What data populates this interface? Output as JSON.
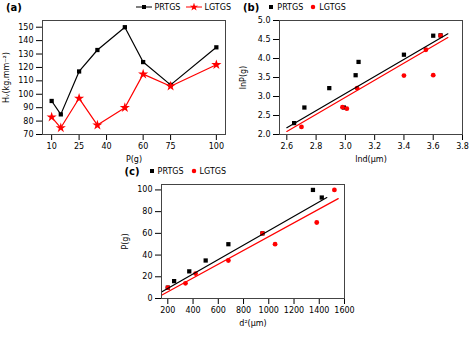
{
  "chart_data": [
    {
      "type": "line",
      "title": "(a)",
      "xlabel": "P(g)",
      "ylabel": "Hᵥ(kg.mm⁻²)",
      "xlim": [
        5,
        105
      ],
      "ylim": [
        70,
        155
      ],
      "xticks": [
        10,
        25,
        40,
        60,
        75,
        100
      ],
      "yticks": [
        70,
        80,
        90,
        100,
        110,
        120,
        130,
        140,
        150
      ],
      "grid": false,
      "legend": "upper right",
      "series": [
        {
          "name": "PRTGS",
          "color": "black",
          "marker": "square",
          "x": [
            10,
            15,
            25,
            35,
            50,
            60,
            75,
            100
          ],
          "values": [
            95,
            85,
            117,
            133,
            150,
            124,
            107,
            135
          ]
        },
        {
          "name": "LGTGS",
          "color": "red",
          "marker": "star",
          "x": [
            10,
            15,
            25,
            35,
            50,
            60,
            75,
            100
          ],
          "values": [
            83,
            75,
            97,
            77,
            90,
            115,
            106,
            122
          ]
        }
      ]
    },
    {
      "type": "scatter",
      "title": "(b)",
      "xlabel": "lnd(μm)",
      "ylabel": "lnP(g)",
      "xlim": [
        2.55,
        3.8
      ],
      "ylim": [
        2.0,
        5.0
      ],
      "xticks": [
        2.6,
        2.8,
        {
          "value": 3,
          "label": "3.0"
        },
        3.2,
        3.4,
        3.6,
        3.8
      ],
      "yticks": [
        {
          "value": 2,
          "label": "2.0"
        },
        2.5,
        {
          "value": 3,
          "label": "3.0"
        },
        3.5,
        {
          "value": 4,
          "label": "4.0"
        },
        4.5,
        {
          "value": 5,
          "label": "5.0"
        }
      ],
      "grid": false,
      "legend": "upper left",
      "series": [
        {
          "name": "PRTGS",
          "color": "black",
          "marker": "square",
          "type": "scatter",
          "x": [
            2.65,
            2.72,
            2.89,
            2.99,
            3.07,
            3.09,
            3.4,
            3.6,
            3.65
          ],
          "values": [
            2.3,
            2.71,
            3.22,
            2.71,
            3.56,
            3.91,
            4.1,
            4.6,
            4.61
          ]
        },
        {
          "name": "LGTGS",
          "color": "red",
          "marker": "circle",
          "type": "scatter",
          "x": [
            2.7,
            2.98,
            3.01,
            3.08,
            3.4,
            3.55,
            3.6,
            3.65
          ],
          "values": [
            2.2,
            2.72,
            2.68,
            3.22,
            3.55,
            4.23,
            3.56,
            4.6
          ]
        },
        {
          "color": "black",
          "type": "line",
          "x": [
            2.6,
            3.7
          ],
          "values": [
            2.18,
            4.65
          ]
        },
        {
          "color": "red",
          "type": "line",
          "x": [
            2.6,
            3.7
          ],
          "values": [
            2.08,
            4.55
          ]
        }
      ]
    },
    {
      "type": "scatter",
      "title": "(c)",
      "xlabel": "d²(μm)",
      "ylabel": "P(g)",
      "xlim": [
        150,
        1600
      ],
      "ylim": [
        0,
        105
      ],
      "xticks": [
        200,
        400,
        600,
        800,
        1000,
        1200,
        1400,
        1600
      ],
      "yticks": [
        0,
        20,
        40,
        60,
        80,
        100
      ],
      "grid": false,
      "legend": "upper left",
      "series": [
        {
          "name": "PRTGS",
          "color": "black",
          "marker": "square",
          "type": "scatter",
          "x": [
            200,
            250,
            370,
            500,
            680,
            950,
            1350,
            1420
          ],
          "values": [
            10,
            16,
            25,
            35,
            50,
            60,
            100,
            93
          ]
        },
        {
          "name": "LGTGS",
          "color": "red",
          "marker": "circle",
          "type": "scatter",
          "x": [
            200,
            340,
            420,
            680,
            950,
            1050,
            1380,
            1520
          ],
          "values": [
            10,
            14,
            23,
            35,
            60,
            50,
            70,
            100
          ]
        },
        {
          "color": "black",
          "type": "line",
          "x": [
            150,
            1460
          ],
          "values": [
            6,
            93
          ]
        },
        {
          "color": "red",
          "type": "line",
          "x": [
            150,
            1550
          ],
          "values": [
            3,
            92
          ]
        }
      ]
    }
  ]
}
